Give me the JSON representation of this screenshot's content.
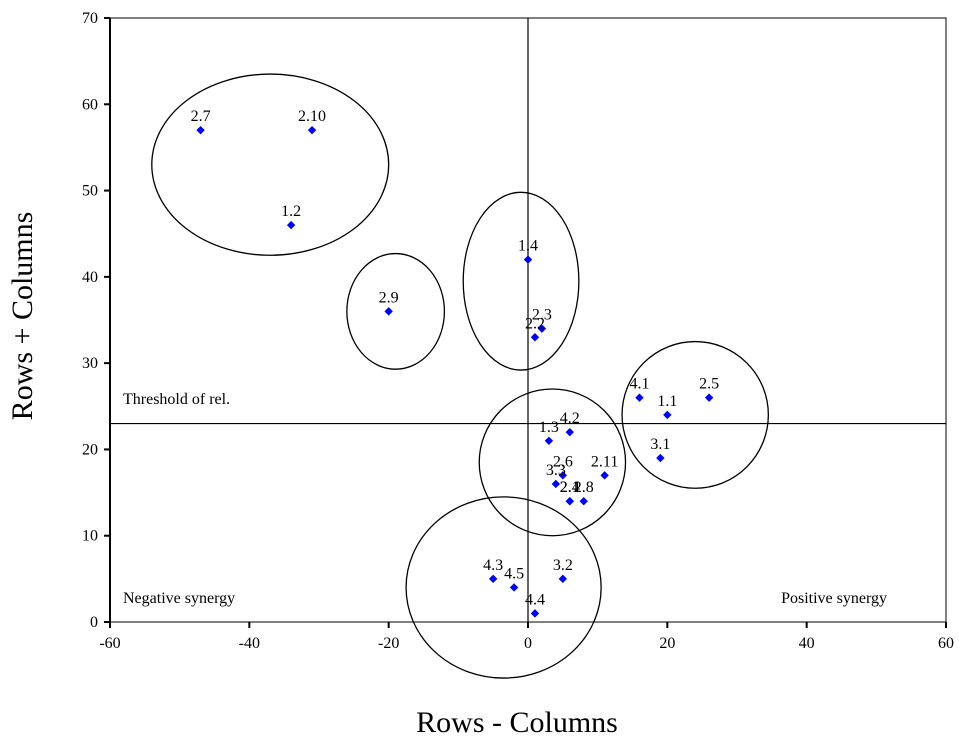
{
  "chart_data": {
    "type": "scatter",
    "xlabel": "Rows - Columns",
    "ylabel": "Rows + Columns",
    "xlim": [
      -60,
      60
    ],
    "ylim": [
      0,
      70
    ],
    "xticks": [
      -60,
      -40,
      -20,
      0,
      20,
      40,
      60
    ],
    "yticks": [
      0,
      10,
      20,
      30,
      40,
      50,
      60,
      70
    ],
    "grid": false,
    "marker_color": "#0000FF",
    "threshold_y": 23,
    "threshold_label": "Threshold of rel.",
    "zero_x": 0,
    "annotations": [
      {
        "text": "Negative synergy",
        "x": -58,
        "y": 3
      },
      {
        "text": "Positive synergy",
        "x": 59,
        "y": 3
      }
    ],
    "points": [
      {
        "label": "2.7",
        "x": -47,
        "y": 57
      },
      {
        "label": "2.10",
        "x": -31,
        "y": 57
      },
      {
        "label": "1.2",
        "x": -34,
        "y": 46
      },
      {
        "label": "2.9",
        "x": -20,
        "y": 36
      },
      {
        "label": "1.4",
        "x": 0,
        "y": 42
      },
      {
        "label": "2.3",
        "x": 2,
        "y": 34
      },
      {
        "label": "2.2",
        "x": 1,
        "y": 33
      },
      {
        "label": "4.1",
        "x": 16,
        "y": 26
      },
      {
        "label": "1.1",
        "x": 20,
        "y": 24
      },
      {
        "label": "2.5",
        "x": 26,
        "y": 26
      },
      {
        "label": "3.1",
        "x": 19,
        "y": 19
      },
      {
        "label": "1.3",
        "x": 3,
        "y": 21
      },
      {
        "label": "4.2",
        "x": 6,
        "y": 22
      },
      {
        "label": "2.6",
        "x": 5,
        "y": 17
      },
      {
        "label": "2.11",
        "x": 11,
        "y": 17
      },
      {
        "label": "3.3",
        "x": 4,
        "y": 16
      },
      {
        "label": "2.4",
        "x": 6,
        "y": 14
      },
      {
        "label": "2.1",
        "x": 6,
        "y": 14
      },
      {
        "label": "2.8",
        "x": 8,
        "y": 14
      },
      {
        "label": "4.3",
        "x": -5,
        "y": 5
      },
      {
        "label": "4.5",
        "x": -2,
        "y": 4
      },
      {
        "label": "3.2",
        "x": 5,
        "y": 5
      },
      {
        "label": "4.4",
        "x": 1,
        "y": 1
      }
    ],
    "clusters": [
      {
        "cx": -37,
        "cy": 53,
        "rx": 17,
        "ry": 10.5
      },
      {
        "cx": -19,
        "cy": 36,
        "rx": 7,
        "ry": 6.7
      },
      {
        "cx": -1,
        "cy": 39.5,
        "rx": 8.3,
        "ry": 10.3
      },
      {
        "cx": 3.5,
        "cy": 18.5,
        "rx": 10.5,
        "ry": 8.5
      },
      {
        "cx": 24,
        "cy": 24,
        "rx": 10.5,
        "ry": 8.5
      },
      {
        "cx": -3.5,
        "cy": 4,
        "rx": 14,
        "ry": 10.5
      }
    ]
  }
}
